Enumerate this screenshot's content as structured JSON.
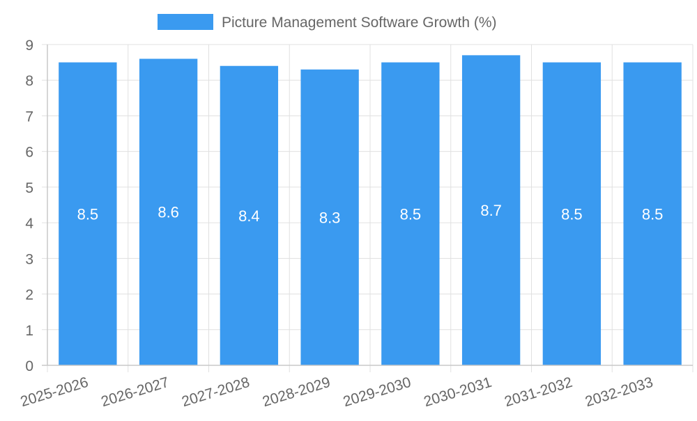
{
  "chart_data": {
    "type": "bar",
    "title": "",
    "xlabel": "",
    "ylabel": "",
    "categories": [
      "2025-2026",
      "2026-2027",
      "2027-2028",
      "2028-2029",
      "2029-2030",
      "2030-2031",
      "2031-2032",
      "2032-2033"
    ],
    "series": [
      {
        "name": "Picture Management Software Growth (%)",
        "values": [
          8.5,
          8.6,
          8.4,
          8.3,
          8.5,
          8.7,
          8.5,
          8.5
        ]
      }
    ],
    "data_labels": [
      "8.5",
      "8.6",
      "8.4",
      "8.3",
      "8.5",
      "8.7",
      "8.5",
      "8.5"
    ],
    "ylim": [
      0,
      9
    ],
    "yticks": [
      "0",
      "1",
      "2",
      "3",
      "4",
      "5",
      "6",
      "7",
      "8",
      "9"
    ],
    "grid": true,
    "legend": "top-center",
    "colors": {
      "bar": "#3a9af0",
      "grid": "#e0e0e0",
      "axis": "#c8c8c8",
      "tick_text": "#666666",
      "label_text": "#ffffff"
    }
  }
}
